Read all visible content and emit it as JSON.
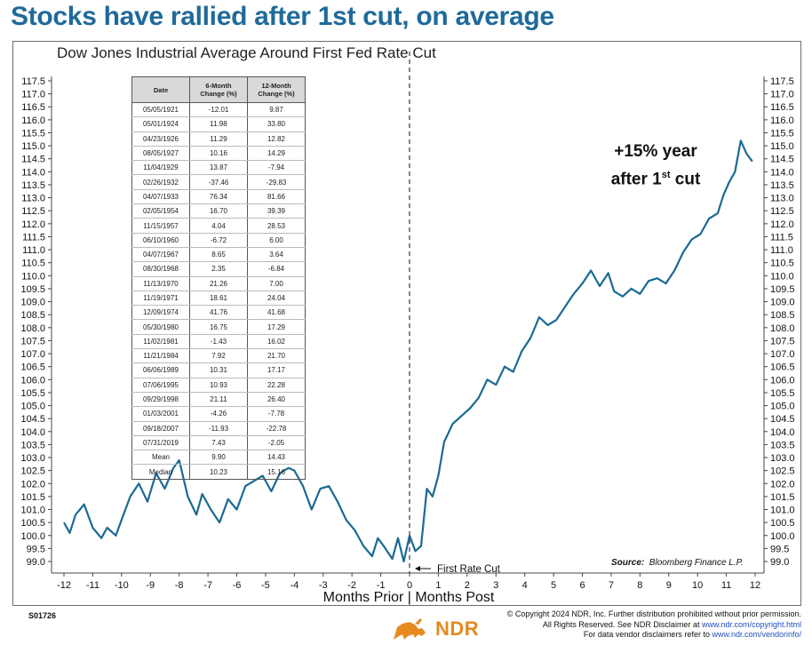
{
  "headline": "Stocks have rallied after 1st cut, on average",
  "chart_data": {
    "type": "line",
    "title": "Dow Jones Industrial Average Around First Fed Rate Cut",
    "xlabel": "Months Prior | Months Post",
    "xlim": [
      -12,
      12
    ],
    "ylim": [
      98.5,
      117.5
    ],
    "x_ticks": [
      "-12",
      "-11",
      "-10",
      "-9",
      "-8",
      "-7",
      "-6",
      "-5",
      "-4",
      "-3",
      "-2",
      "-1",
      "0",
      "1",
      "2",
      "3",
      "4",
      "5",
      "6",
      "7",
      "8",
      "9",
      "10",
      "11",
      "12"
    ],
    "y_ticks": [
      "99.0",
      "99.5",
      "100.0",
      "100.5",
      "101.0",
      "101.5",
      "102.0",
      "102.5",
      "103.0",
      "103.5",
      "104.0",
      "104.5",
      "105.0",
      "105.5",
      "106.0",
      "106.5",
      "107.0",
      "107.5",
      "108.0",
      "108.5",
      "109.0",
      "109.5",
      "110.0",
      "110.5",
      "111.0",
      "111.5",
      "112.0",
      "112.5",
      "113.0",
      "113.5",
      "114.0",
      "114.5",
      "115.0",
      "115.5",
      "116.0",
      "116.5",
      "117.0",
      "117.5"
    ],
    "series": [
      {
        "color": "#1a6a94",
        "x": [
          -12,
          -11.8,
          -11.6,
          -11.3,
          -11.0,
          -10.7,
          -10.5,
          -10.2,
          -10.0,
          -9.7,
          -9.4,
          -9.1,
          -8.8,
          -8.5,
          -8.2,
          -8.0,
          -7.7,
          -7.4,
          -7.2,
          -6.9,
          -6.6,
          -6.3,
          -6.0,
          -5.7,
          -5.4,
          -5.1,
          -4.8,
          -4.5,
          -4.2,
          -4.0,
          -3.7,
          -3.4,
          -3.1,
          -2.8,
          -2.5,
          -2.2,
          -1.9,
          -1.6,
          -1.3,
          -1.1,
          -0.9,
          -0.6,
          -0.4,
          -0.2,
          0,
          0.2,
          0.4,
          0.6,
          0.8,
          1.0,
          1.2,
          1.5,
          1.8,
          2.1,
          2.4,
          2.7,
          3.0,
          3.3,
          3.6,
          3.9,
          4.2,
          4.5,
          4.8,
          5.1,
          5.4,
          5.7,
          6.0,
          6.3,
          6.6,
          6.9,
          7.1,
          7.4,
          7.7,
          8.0,
          8.3,
          8.6,
          8.9,
          9.2,
          9.5,
          9.8,
          10.1,
          10.4,
          10.7,
          10.9,
          11.1,
          11.3,
          11.5,
          11.7,
          11.9
        ],
        "y": [
          100.5,
          100.1,
          100.8,
          101.2,
          100.3,
          99.9,
          100.3,
          100.0,
          100.6,
          101.5,
          102.0,
          101.3,
          102.4,
          101.8,
          102.6,
          102.9,
          101.5,
          100.8,
          101.6,
          101.0,
          100.5,
          101.4,
          101.0,
          101.9,
          102.1,
          102.3,
          101.7,
          102.4,
          102.6,
          102.5,
          101.9,
          101.0,
          101.8,
          101.9,
          101.3,
          100.6,
          100.2,
          99.6,
          99.2,
          99.9,
          99.6,
          99.1,
          99.9,
          99.0,
          100.0,
          99.4,
          99.6,
          101.8,
          101.5,
          102.3,
          103.6,
          104.3,
          104.6,
          104.9,
          105.3,
          106.0,
          105.8,
          106.5,
          106.3,
          107.1,
          107.6,
          108.4,
          108.1,
          108.3,
          108.8,
          109.3,
          109.7,
          110.2,
          109.6,
          110.1,
          109.4,
          109.2,
          109.5,
          109.3,
          109.8,
          109.9,
          109.7,
          110.2,
          110.9,
          111.4,
          111.6,
          112.2,
          112.4,
          113.1,
          113.6,
          114.0,
          115.2,
          114.7,
          114.4
        ]
      }
    ],
    "vline_label": "First Rate Cut",
    "annotation_line1": "+15% year",
    "annotation_line2_pre": "after 1",
    "annotation_line2_sup": "st",
    "annotation_line2_post": " cut",
    "source_label": "Source:",
    "source_text": "Bloomberg Finance L.P."
  },
  "table": {
    "headers": [
      "Date",
      "6-Month Change (%)",
      "12-Month Change (%)"
    ],
    "rows": [
      [
        "05/05/1921",
        "-12.01",
        "9.87"
      ],
      [
        "05/01/1924",
        "11.98",
        "33.80"
      ],
      [
        "04/23/1926",
        "11.29",
        "12.82"
      ],
      [
        "08/05/1927",
        "10.16",
        "14.29"
      ],
      [
        "11/04/1929",
        "13.87",
        "-7.94"
      ],
      [
        "02/26/1932",
        "-37.46",
        "-29.83"
      ],
      [
        "04/07/1933",
        "76.34",
        "81.66"
      ],
      [
        "02/05/1954",
        "16.70",
        "39.39"
      ],
      [
        "11/15/1957",
        "4.04",
        "28.53"
      ],
      [
        "06/10/1960",
        "-6.72",
        "6.00"
      ],
      [
        "04/07/1967",
        "8.65",
        "3.64"
      ],
      [
        "08/30/1968",
        "2.35",
        "-6.84"
      ],
      [
        "11/13/1970",
        "21.26",
        "7.00"
      ],
      [
        "11/19/1971",
        "18.61",
        "24.04"
      ],
      [
        "12/09/1974",
        "41.76",
        "41.68"
      ],
      [
        "05/30/1980",
        "16.75",
        "17.29"
      ],
      [
        "11/02/1981",
        "-1.43",
        "16.02"
      ],
      [
        "11/21/1984",
        "7.92",
        "21.70"
      ],
      [
        "06/06/1989",
        "10.31",
        "17.17"
      ],
      [
        "07/06/1995",
        "10.93",
        "22.28"
      ],
      [
        "09/29/1998",
        "21.11",
        "26.40"
      ],
      [
        "01/03/2001",
        "-4.26",
        "-7.78"
      ],
      [
        "09/18/2007",
        "-11.93",
        "-22.78"
      ],
      [
        "07/31/2019",
        "7.43",
        "-2.05"
      ],
      [
        "Mean",
        "9.90",
        "14.43"
      ],
      [
        "Median",
        "10.23",
        "15.16"
      ]
    ]
  },
  "footer": {
    "code": "S01726",
    "logo_text": "NDR",
    "line1": "© Copyright 2024 NDR, Inc. Further distribution prohibited without prior permission.",
    "line2_pre": "All Rights Reserved. See NDR Disclaimer at ",
    "line2_link": "www.ndr.com/copyright.html",
    "line3_pre": "For data vendor disclaimers refer to ",
    "line3_link": "www.ndr.com/vendorinfo/"
  }
}
